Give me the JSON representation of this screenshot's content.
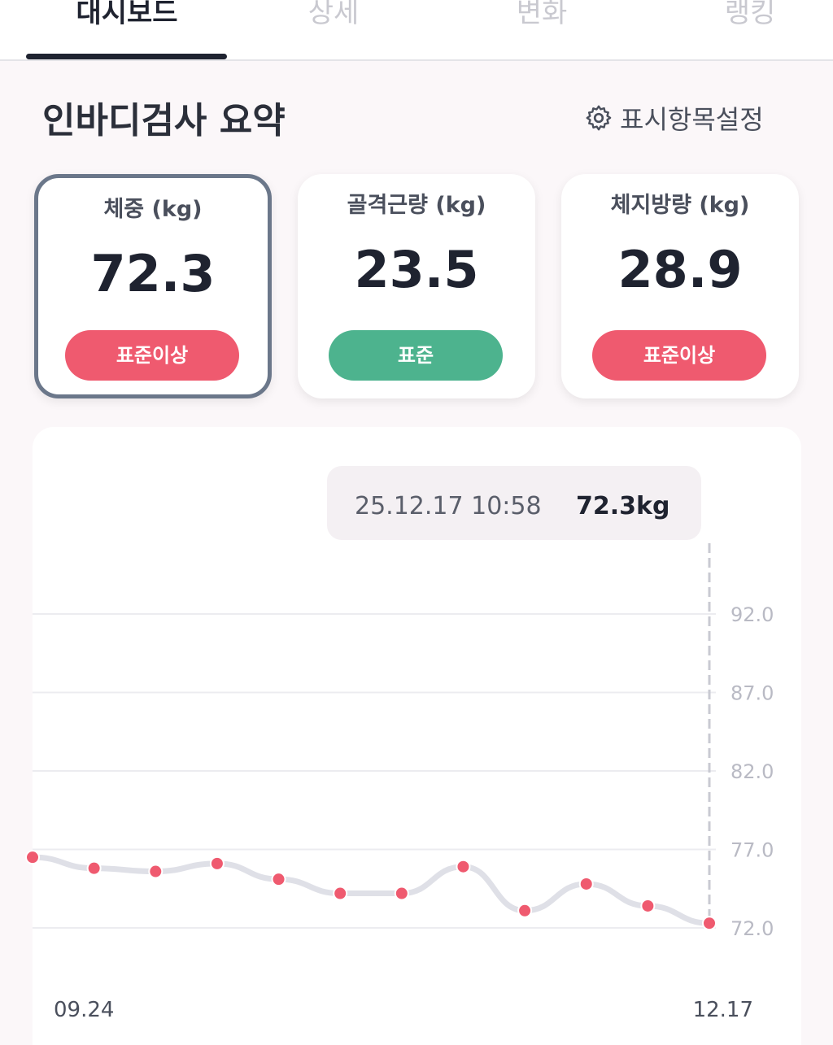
{
  "tabs": [
    "대시보드",
    "상세",
    "변화",
    "랭킹"
  ],
  "section": {
    "title": "인바디검사 요약",
    "settings": "표시항목설정"
  },
  "cards": [
    {
      "title": "체중 (kg)",
      "value": "72.3",
      "status": "표준이상",
      "color": "#ef5a6f"
    },
    {
      "title": "골격근량 (kg)",
      "value": "23.5",
      "status": "표준",
      "color": "#4db38e"
    },
    {
      "title": "체지방량 (kg)",
      "value": "28.9",
      "status": "표준이상",
      "color": "#ef5a6f"
    }
  ],
  "chart_data": {
    "type": "line",
    "tooltip": {
      "time": "25.12.17 10:58",
      "value": "72.3kg"
    },
    "categories": [
      "09.24",
      null,
      null,
      null,
      null,
      null,
      null,
      null,
      null,
      null,
      null,
      "12.17"
    ],
    "series": [
      {
        "name": "체중",
        "color": "#ef5a6f",
        "values": [
          76.5,
          75.8,
          75.6,
          76.1,
          75.1,
          74.2,
          74.2,
          75.9,
          73.1,
          74.8,
          73.4,
          72.3
        ]
      }
    ],
    "ylim": [
      72,
      92
    ],
    "yticks": [
      {
        "value": 92,
        "label": "92.0"
      },
      {
        "value": 87,
        "label": "87.0"
      },
      {
        "value": 82,
        "label": "82.0"
      },
      {
        "value": 77,
        "label": "77.0"
      },
      {
        "value": 72,
        "label": "72.0"
      }
    ],
    "grid": true
  }
}
